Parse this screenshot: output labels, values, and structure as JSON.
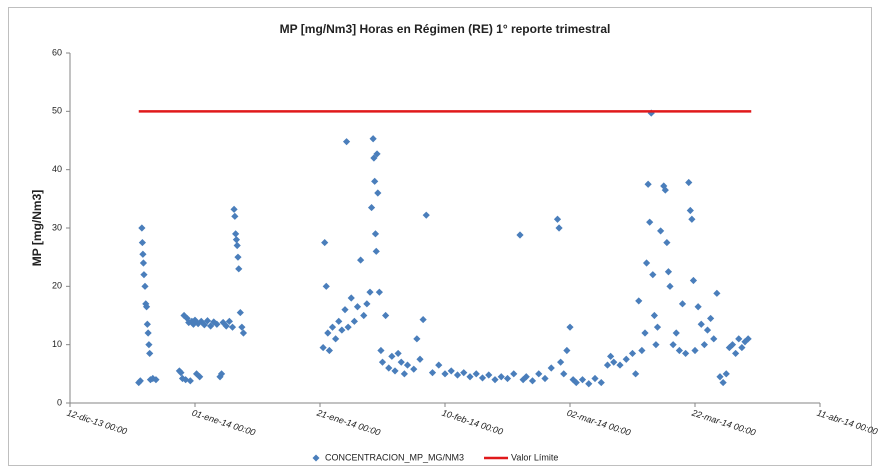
{
  "chart_data": {
    "type": "scatter",
    "title": "MP [mg/Nm3] Horas en Régimen (RE) 1° reporte trimestral",
    "y_label": "MP [mg/Nm3]",
    "ylim": [
      0,
      60
    ],
    "yticks": [
      0,
      10,
      20,
      30,
      40,
      50,
      60
    ],
    "xlim": [
      "2013-12-12 00:00",
      "2014-04-11 00:00"
    ],
    "xticks": [
      {
        "value": "2013-12-12 00:00",
        "label": "12-dic-13 00:00"
      },
      {
        "value": "2014-01-01 00:00",
        "label": "01-ene-14 00:00"
      },
      {
        "value": "2014-01-21 00:00",
        "label": "21-ene-14 00:00"
      },
      {
        "value": "2014-02-10 00:00",
        "label": "10-feb-14 00:00"
      },
      {
        "value": "2014-03-02 00:00",
        "label": "02-mar-14 00:00"
      },
      {
        "value": "2014-03-22 00:00",
        "label": "22-mar-14 00:00"
      },
      {
        "value": "2014-04-11 00:00",
        "label": "11-abr-14 00:00"
      }
    ],
    "grid": false,
    "legend": "bottom",
    "series": [
      {
        "name": "CONCENTRACION_MP_MG/NM3",
        "type": "scatter",
        "color": "#4a7ebb",
        "x": [
          "2013-12-23 00:00",
          "2013-12-23 06:00",
          "2013-12-23 12:00",
          "2013-12-23 14:00",
          "2013-12-23 16:00",
          "2013-12-23 18:00",
          "2013-12-23 20:00",
          "2013-12-24 00:00",
          "2013-12-24 03:00",
          "2013-12-24 06:00",
          "2013-12-24 09:00",
          "2013-12-24 12:00",
          "2013-12-24 15:00",
          "2013-12-24 18:00",
          "2013-12-24 21:00",
          "2013-12-25 06:00",
          "2013-12-25 18:00",
          "2013-12-29 12:00",
          "2013-12-29 18:00",
          "2013-12-30 00:00",
          "2013-12-30 06:00",
          "2013-12-30 12:00",
          "2013-12-30 18:00",
          "2013-12-31 00:00",
          "2013-12-31 06:00",
          "2013-12-31 12:00",
          "2013-12-31 18:00",
          "2014-01-01 00:00",
          "2014-01-01 06:00",
          "2014-01-01 12:00",
          "2014-01-01 18:00",
          "2014-01-02 00:00",
          "2014-01-02 12:00",
          "2014-01-03 00:00",
          "2014-01-03 12:00",
          "2014-01-04 00:00",
          "2014-01-04 12:00",
          "2014-01-05 00:00",
          "2014-01-05 06:00",
          "2014-01-05 12:00",
          "2014-01-06 00:00",
          "2014-01-06 12:00",
          "2014-01-07 00:00",
          "2014-01-07 06:00",
          "2014-01-07 09:00",
          "2014-01-07 12:00",
          "2014-01-07 15:00",
          "2014-01-07 18:00",
          "2014-01-07 21:00",
          "2014-01-08 00:00",
          "2014-01-08 06:00",
          "2014-01-08 12:00",
          "2014-01-08 18:00",
          "2014-01-21 12:00",
          "2014-01-21 18:00",
          "2014-01-22 00:00",
          "2014-01-22 06:00",
          "2014-01-22 12:00",
          "2014-01-23 00:00",
          "2014-01-23 12:00",
          "2014-01-24 00:00",
          "2014-01-24 12:00",
          "2014-01-25 00:00",
          "2014-01-25 06:00",
          "2014-01-25 12:00",
          "2014-01-26 00:00",
          "2014-01-26 12:00",
          "2014-01-27 00:00",
          "2014-01-27 12:00",
          "2014-01-28 00:00",
          "2014-01-28 12:00",
          "2014-01-29 00:00",
          "2014-01-29 06:00",
          "2014-01-29 12:00",
          "2014-01-29 15:00",
          "2014-01-29 18:00",
          "2014-01-29 21:00",
          "2014-01-30 00:00",
          "2014-01-30 03:00",
          "2014-01-30 06:00",
          "2014-01-30 12:00",
          "2014-01-30 18:00",
          "2014-01-31 00:00",
          "2014-01-31 12:00",
          "2014-02-01 00:00",
          "2014-02-01 12:00",
          "2014-02-02 00:00",
          "2014-02-02 12:00",
          "2014-02-03 00:00",
          "2014-02-03 12:00",
          "2014-02-04 00:00",
          "2014-02-05 00:00",
          "2014-02-05 12:00",
          "2014-02-06 00:00",
          "2014-02-06 12:00",
          "2014-02-07 00:00",
          "2014-02-08 00:00",
          "2014-02-09 00:00",
          "2014-02-10 00:00",
          "2014-02-11 00:00",
          "2014-02-12 00:00",
          "2014-02-13 00:00",
          "2014-02-14 00:00",
          "2014-02-15 00:00",
          "2014-02-16 00:00",
          "2014-02-17 00:00",
          "2014-02-18 00:00",
          "2014-02-19 00:00",
          "2014-02-20 00:00",
          "2014-02-21 00:00",
          "2014-02-22 00:00",
          "2014-02-22 12:00",
          "2014-02-23 00:00",
          "2014-02-24 00:00",
          "2014-02-25 00:00",
          "2014-02-26 00:00",
          "2014-02-27 00:00",
          "2014-02-28 00:00",
          "2014-02-28 06:00",
          "2014-02-28 12:00",
          "2014-03-01 00:00",
          "2014-03-01 12:00",
          "2014-03-02 00:00",
          "2014-03-02 12:00",
          "2014-03-03 00:00",
          "2014-03-04 00:00",
          "2014-03-05 00:00",
          "2014-03-06 00:00",
          "2014-03-07 00:00",
          "2014-03-08 00:00",
          "2014-03-08 12:00",
          "2014-03-09 00:00",
          "2014-03-10 00:00",
          "2014-03-11 00:00",
          "2014-03-12 00:00",
          "2014-03-12 12:00",
          "2014-03-13 00:00",
          "2014-03-13 12:00",
          "2014-03-14 00:00",
          "2014-03-14 06:00",
          "2014-03-14 12:00",
          "2014-03-14 18:00",
          "2014-03-15 00:00",
          "2014-03-15 06:00",
          "2014-03-15 12:00",
          "2014-03-15 18:00",
          "2014-03-16 00:00",
          "2014-03-16 12:00",
          "2014-03-17 00:00",
          "2014-03-17 06:00",
          "2014-03-17 12:00",
          "2014-03-17 18:00",
          "2014-03-18 00:00",
          "2014-03-18 12:00",
          "2014-03-19 00:00",
          "2014-03-19 12:00",
          "2014-03-20 00:00",
          "2014-03-20 12:00",
          "2014-03-21 00:00",
          "2014-03-21 06:00",
          "2014-03-21 12:00",
          "2014-03-21 18:00",
          "2014-03-22 00:00",
          "2014-03-22 12:00",
          "2014-03-23 00:00",
          "2014-03-23 12:00",
          "2014-03-24 00:00",
          "2014-03-24 12:00",
          "2014-03-25 00:00",
          "2014-03-25 12:00",
          "2014-03-26 00:00",
          "2014-03-26 12:00",
          "2014-03-27 00:00",
          "2014-03-27 12:00",
          "2014-03-28 00:00",
          "2014-03-28 12:00",
          "2014-03-29 00:00",
          "2014-03-29 12:00",
          "2014-03-30 00:00",
          "2014-03-30 12:00"
        ],
        "values": [
          3.5,
          3.8,
          30,
          27.5,
          25.5,
          24,
          22,
          20,
          17,
          16.5,
          13.5,
          12,
          10,
          8.5,
          4,
          4.2,
          4,
          5.5,
          5.2,
          4.2,
          15,
          4,
          14.5,
          13.8,
          3.8,
          14,
          13.5,
          14.2,
          5,
          13.6,
          4.5,
          14,
          13.4,
          14.1,
          13.2,
          13.9,
          13.5,
          4.5,
          5,
          13.8,
          13.2,
          14,
          13,
          33.2,
          32,
          29,
          28,
          27,
          25,
          23,
          15.5,
          13,
          12,
          9.5,
          27.5,
          20,
          12,
          9,
          13,
          11,
          14,
          12.5,
          16,
          44.8,
          13,
          18,
          14,
          16.5,
          24.5,
          15,
          17,
          19,
          33.5,
          45.3,
          42,
          38,
          29,
          26,
          42.7,
          36,
          19,
          9,
          7,
          15,
          6,
          8,
          5.5,
          8.5,
          7,
          5,
          6.5,
          5.8,
          11,
          7.5,
          14.3,
          32.2,
          5.2,
          6.5,
          5,
          5.5,
          4.8,
          5.2,
          4.5,
          5,
          4.3,
          4.8,
          4,
          4.5,
          4.2,
          5,
          28.8,
          4,
          4.5,
          3.8,
          5,
          4.2,
          6,
          31.5,
          30,
          7,
          5,
          9,
          13,
          4,
          3.5,
          4,
          3.3,
          4.2,
          3.5,
          6.5,
          8,
          7,
          6.5,
          7.5,
          8.5,
          5,
          17.5,
          9,
          12,
          24,
          37.5,
          31,
          49.7,
          22,
          15,
          10,
          13,
          29.5,
          37.2,
          36.5,
          27.5,
          22.5,
          20,
          10,
          12,
          9,
          17,
          8.5,
          37.8,
          33,
          31.5,
          21,
          9,
          16.5,
          13.5,
          10,
          12.5,
          14.5,
          11,
          18.8,
          4.5,
          3.5,
          5,
          9.5,
          10,
          8.5,
          11,
          9.5,
          10.5,
          11
        ]
      },
      {
        "name": "Valor Límite",
        "type": "line",
        "color": "#e0191b",
        "x": [
          "2013-12-23 00:00",
          "2014-03-31 00:00"
        ],
        "values": [
          50,
          50
        ]
      }
    ]
  }
}
